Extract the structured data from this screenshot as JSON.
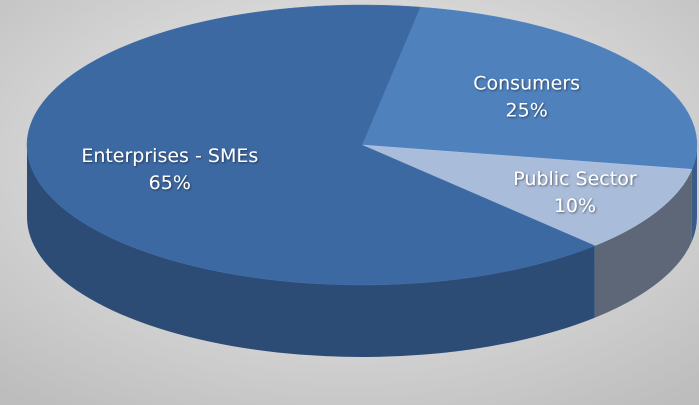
{
  "chart_data": {
    "type": "pie",
    "categories": [
      "Enterprises - SMEs",
      "Consumers",
      "Public Sector"
    ],
    "values": [
      65,
      25,
      10
    ],
    "value_labels": [
      "65%",
      "25%",
      "10%"
    ],
    "colors": [
      "#3d69a3",
      "#4f81bd",
      "#a9bcd9"
    ]
  }
}
